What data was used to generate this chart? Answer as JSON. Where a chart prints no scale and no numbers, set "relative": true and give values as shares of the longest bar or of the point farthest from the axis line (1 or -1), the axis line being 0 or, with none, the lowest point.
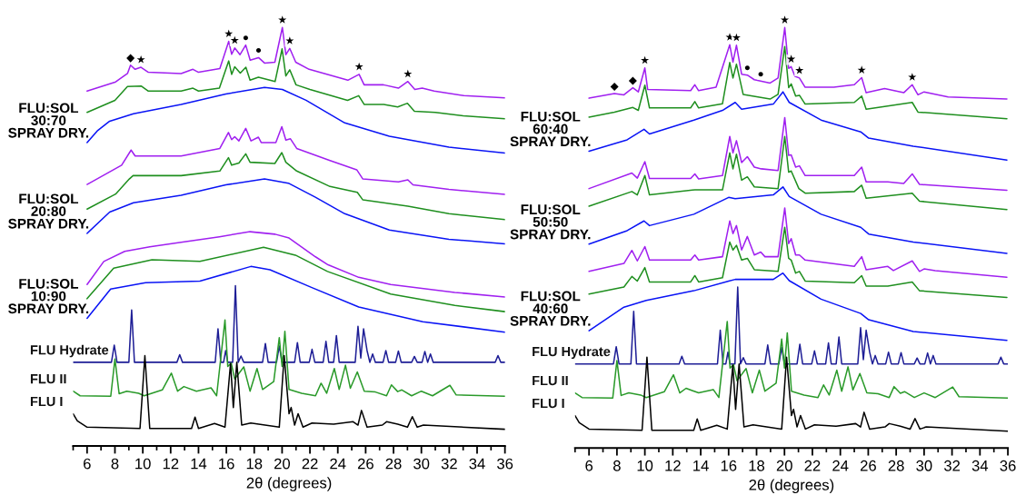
{
  "chart_data": [
    {
      "type": "line",
      "relative": true,
      "xlabel": "2θ (degrees)",
      "xlim": [
        5,
        36
      ],
      "tick_labels": "x",
      "xticks": [
        {
          "value": 5,
          "label": null
        },
        6,
        {
          "value": 7,
          "label": null
        },
        8,
        {
          "value": 9,
          "label": null
        },
        10,
        {
          "value": 11,
          "label": null
        },
        12,
        {
          "value": 13,
          "label": null
        },
        14,
        {
          "value": 15,
          "label": null
        },
        16,
        {
          "value": 17,
          "label": null
        },
        18,
        {
          "value": 19,
          "label": null
        },
        20,
        {
          "value": 21,
          "label": null
        },
        22,
        {
          "value": 23,
          "label": null
        },
        24,
        {
          "value": 25,
          "label": null
        },
        26,
        {
          "value": 27,
          "label": null
        },
        28,
        {
          "value": 29,
          "label": null
        },
        30,
        {
          "value": 31,
          "label": null
        },
        32,
        {
          "value": 33,
          "label": null
        },
        34,
        {
          "value": 35,
          "label": null
        },
        36
      ],
      "series": [
        {
          "color": "#a020f0",
          "x": [
            6.0,
            8.05,
            8.9,
            9.12,
            9.45,
            9.87,
            10.4,
            12.75,
            13.6,
            14.0,
            15.53,
            16.17,
            16.38,
            16.6,
            16.98,
            17.39,
            17.71,
            18.31,
            18.74,
            19.48,
            20.02,
            20.27,
            20.55,
            20.98,
            21.94,
            24.72,
            25.53,
            25.89,
            27.28,
            28.35,
            29.03,
            29.53,
            30.06,
            30.92,
            33.05,
            36.0
          ],
          "values": [
            0.848,
            0.87,
            0.89,
            0.91,
            0.9,
            0.905,
            0.893,
            0.89,
            0.9,
            0.893,
            0.902,
            0.967,
            0.936,
            0.951,
            0.935,
            0.958,
            0.922,
            0.928,
            0.915,
            0.917,
            1.0,
            0.935,
            0.95,
            0.917,
            0.9,
            0.874,
            0.888,
            0.863,
            0.863,
            0.855,
            0.871,
            0.852,
            0.855,
            0.848,
            0.837,
            0.832
          ]
        },
        {
          "color": "#1f8f1f",
          "x": [
            6.0,
            8.0,
            8.9,
            9.9,
            10.4,
            12.75,
            13.6,
            14.0,
            15.5,
            16.17,
            16.38,
            16.6,
            17.0,
            17.4,
            17.7,
            18.3,
            19.5,
            20.0,
            20.27,
            20.55,
            21.0,
            22.0,
            24.7,
            25.5,
            25.9,
            27.3,
            28.3,
            29.0,
            29.5,
            31.0,
            33.0,
            36.0
          ],
          "values": [
            0.797,
            0.826,
            0.859,
            0.86,
            0.848,
            0.848,
            0.855,
            0.848,
            0.855,
            0.92,
            0.888,
            0.906,
            0.891,
            0.905,
            0.874,
            0.881,
            0.871,
            0.949,
            0.884,
            0.899,
            0.863,
            0.852,
            0.826,
            0.837,
            0.816,
            0.816,
            0.81,
            0.819,
            0.8,
            0.797,
            0.789,
            0.782
          ]
        },
        {
          "color": "#0a14f5",
          "x": [
            6.0,
            6.77,
            7.62,
            9.33,
            12.75,
            15.96,
            18.74,
            20.02,
            21.72,
            24.5,
            27.7,
            31.98,
            36.0
          ],
          "values": [
            0.725,
            0.754,
            0.776,
            0.794,
            0.816,
            0.841,
            0.857,
            0.852,
            0.826,
            0.772,
            0.74,
            0.714,
            0.7
          ]
        },
        {
          "color": "#a020f0",
          "x": [
            6.0,
            8.48,
            9.16,
            9.45,
            12.75,
            15.53,
            16.15,
            16.38,
            16.6,
            16.9,
            17.39,
            17.77,
            18.3,
            18.5,
            19.55,
            19.98,
            20.27,
            20.6,
            21.05,
            23.44,
            25.36,
            25.8,
            28.35,
            29.03,
            29.4,
            31.98,
            36.0
          ],
          "values": [
            0.625,
            0.671,
            0.707,
            0.693,
            0.693,
            0.711,
            0.749,
            0.732,
            0.739,
            0.729,
            0.759,
            0.729,
            0.738,
            0.725,
            0.725,
            0.763,
            0.731,
            0.734,
            0.711,
            0.682,
            0.66,
            0.638,
            0.631,
            0.636,
            0.624,
            0.613,
            0.601
          ]
        },
        {
          "color": "#1f8f1f",
          "x": [
            6.0,
            8.05,
            9.03,
            9.3,
            12.75,
            15.53,
            16.15,
            16.38,
            16.9,
            17.39,
            17.7,
            19.48,
            19.98,
            20.27,
            21.05,
            23.44,
            25.4,
            25.8,
            29.03,
            31.98,
            36.0
          ],
          "values": [
            0.566,
            0.602,
            0.638,
            0.646,
            0.646,
            0.657,
            0.689,
            0.671,
            0.676,
            0.698,
            0.678,
            0.675,
            0.701,
            0.678,
            0.657,
            0.62,
            0.606,
            0.588,
            0.573,
            0.555,
            0.541
          ]
        },
        {
          "color": "#0a14f5",
          "x": [
            6.0,
            7.62,
            9.33,
            12.75,
            15.96,
            18.74,
            20.45,
            22.36,
            24.5,
            27.7,
            31.98,
            36.0
          ],
          "values": [
            0.508,
            0.559,
            0.581,
            0.599,
            0.624,
            0.638,
            0.628,
            0.595,
            0.555,
            0.516,
            0.494,
            0.483
          ]
        },
        {
          "color": "#a020f0",
          "x": [
            6.0,
            7.2,
            8.7,
            10.5,
            12.75,
            15.5,
            17.7,
            19.5,
            20.5,
            22.4,
            23.3,
            25.5,
            27.8,
            32.4,
            36.0
          ],
          "values": [
            0.386,
            0.441,
            0.465,
            0.476,
            0.487,
            0.5,
            0.512,
            0.506,
            0.497,
            0.452,
            0.433,
            0.403,
            0.386,
            0.367,
            0.356
          ]
        },
        {
          "color": "#1f8f1f",
          "x": [
            6.0,
            7.91,
            10.66,
            14.1,
            18.67,
            20.96,
            23.26,
            27.8,
            32.4,
            36.0
          ],
          "values": [
            0.352,
            0.425,
            0.445,
            0.441,
            0.475,
            0.456,
            0.417,
            0.363,
            0.336,
            0.321
          ]
        },
        {
          "color": "#0a14f5",
          "x": [
            6.0,
            7.69,
            10.2,
            14.1,
            17.76,
            19.13,
            22.1,
            25.5,
            30.1,
            36.0
          ],
          "values": [
            0.305,
            0.375,
            0.39,
            0.394,
            0.429,
            0.421,
            0.379,
            0.332,
            0.297,
            0.272
          ]
        },
        {
          "name": "FLU Hydrate",
          "color": "#1e1e96",
          "x": [
            5.0,
            7.75,
            7.95,
            8.15,
            9.0,
            9.2,
            9.4,
            12.45,
            12.65,
            12.85,
            15.2,
            15.4,
            15.6,
            15.8,
            15.95,
            16.1,
            16.45,
            16.65,
            16.85,
            17.05,
            17.25,
            18.6,
            18.8,
            19.0,
            19.6,
            19.8,
            20.0,
            20.9,
            21.1,
            21.3,
            21.95,
            22.15,
            22.35,
            22.95,
            23.15,
            23.35,
            23.7,
            23.9,
            24.1,
            25.25,
            25.45,
            25.65,
            25.85,
            26.1,
            26.3,
            26.5,
            26.7,
            27.25,
            27.45,
            27.65,
            28.15,
            28.35,
            28.55,
            29.3,
            29.5,
            29.7,
            30.05,
            30.25,
            30.45,
            30.65,
            30.85,
            35.3,
            35.5,
            35.7,
            36.0
          ],
          "values": [
            0.2,
            0.2,
            0.241,
            0.2,
            0.2,
            0.325,
            0.2,
            0.2,
            0.218,
            0.2,
            0.2,
            0.28,
            0.2,
            0.2,
            0.228,
            0.2,
            0.2,
            0.383,
            0.2,
            0.215,
            0.2,
            0.2,
            0.245,
            0.2,
            0.2,
            0.239,
            0.2,
            0.2,
            0.247,
            0.2,
            0.2,
            0.231,
            0.2,
            0.2,
            0.25,
            0.2,
            0.2,
            0.264,
            0.2,
            0.2,
            0.286,
            0.21,
            0.28,
            0.228,
            0.2,
            0.22,
            0.2,
            0.2,
            0.228,
            0.2,
            0.2,
            0.227,
            0.2,
            0.2,
            0.214,
            0.2,
            0.2,
            0.226,
            0.2,
            0.22,
            0.2,
            0.2,
            0.216,
            0.2,
            0.2
          ]
        },
        {
          "name": "FLU II",
          "color": "#2a9a2a",
          "x": [
            5.0,
            5.5,
            7.7,
            8.0,
            8.3,
            8.85,
            9.7,
            10.1,
            11.4,
            12.05,
            12.5,
            12.95,
            13.85,
            14.9,
            15.3,
            15.9,
            16.1,
            16.35,
            16.6,
            17.25,
            17.7,
            18.2,
            18.6,
            19.4,
            19.8,
            20.0,
            20.2,
            20.5,
            21.4,
            22.4,
            22.8,
            23.2,
            23.75,
            24.1,
            24.55,
            24.9,
            25.4,
            25.9,
            26.7,
            27.5,
            27.85,
            28.3,
            28.6,
            29.3,
            30.0,
            30.8,
            32.05,
            32.5,
            36.0
          ],
          "values": [
            0.131,
            0.12,
            0.119,
            0.208,
            0.125,
            0.131,
            0.126,
            0.12,
            0.134,
            0.174,
            0.131,
            0.142,
            0.131,
            0.139,
            0.12,
            0.301,
            0.19,
            0.198,
            0.16,
            0.189,
            0.131,
            0.185,
            0.135,
            0.154,
            0.259,
            0.19,
            0.274,
            0.135,
            0.126,
            0.12,
            0.15,
            0.126,
            0.185,
            0.135,
            0.193,
            0.138,
            0.177,
            0.131,
            0.129,
            0.12,
            0.146,
            0.13,
            0.134,
            0.12,
            0.131,
            0.12,
            0.145,
            0.122,
            0.119
          ]
        },
        {
          "name": "FLU I",
          "color": "#000000",
          "x": [
            5.0,
            5.3,
            6.0,
            9.8,
            10.15,
            10.5,
            13.5,
            13.75,
            14.0,
            15.15,
            15.9,
            16.3,
            16.5,
            16.75,
            17.1,
            17.75,
            19.8,
            20.15,
            20.5,
            20.65,
            20.9,
            21.15,
            21.5,
            22.15,
            23.7,
            25.1,
            25.45,
            25.7,
            26.1,
            27.2,
            27.5,
            28.3,
            29.0,
            29.35,
            29.7,
            30.15,
            36.0
          ],
          "values": [
            0.077,
            0.06,
            0.045,
            0.042,
            0.216,
            0.042,
            0.042,
            0.069,
            0.042,
            0.054,
            0.045,
            0.197,
            0.092,
            0.2,
            0.05,
            0.055,
            0.045,
            0.216,
            0.077,
            0.092,
            0.05,
            0.077,
            0.045,
            0.055,
            0.052,
            0.058,
            0.05,
            0.085,
            0.045,
            0.05,
            0.058,
            0.052,
            0.045,
            0.07,
            0.045,
            0.05,
            0.04
          ]
        }
      ],
      "annotations": [
        "FLU:SOL\n30:70\nSPRAY DRY.",
        "FLU:SOL\n20:80\nSPRAY DRY.",
        "FLU:SOL\n10:90\nSPRAY DRY.",
        {
          "text": "◆",
          "x": 9.12,
          "y": 0.91
        },
        {
          "text": "★",
          "x": 9.87,
          "y": 0.905
        },
        {
          "text": "★",
          "x": 16.17,
          "y": 0.967
        },
        {
          "text": "★",
          "x": 16.6,
          "y": 0.951
        },
        {
          "text": "●",
          "x": 17.39,
          "y": 0.958
        },
        {
          "text": "●",
          "x": 18.31,
          "y": 0.928
        },
        {
          "text": "★",
          "x": 20.02,
          "y": 1.0
        },
        {
          "text": "★",
          "x": 20.55,
          "y": 0.95
        },
        {
          "text": "★",
          "x": 25.53,
          "y": 0.888
        },
        {
          "text": "★",
          "x": 29.03,
          "y": 0.871
        }
      ]
    },
    {
      "type": "line",
      "relative": true,
      "xlabel": "2θ (degrees)",
      "xlim": [
        5,
        36
      ],
      "tick_labels": "x",
      "xticks": [
        {
          "value": 5,
          "label": null
        },
        6,
        {
          "value": 7,
          "label": null
        },
        8,
        {
          "value": 9,
          "label": null
        },
        10,
        {
          "value": 11,
          "label": null
        },
        12,
        {
          "value": 13,
          "label": null
        },
        14,
        {
          "value": 15,
          "label": null
        },
        16,
        {
          "value": 17,
          "label": null
        },
        18,
        {
          "value": 19,
          "label": null
        },
        20,
        {
          "value": 21,
          "label": null
        },
        22,
        {
          "value": 23,
          "label": null
        },
        24,
        {
          "value": 25,
          "label": null
        },
        26,
        {
          "value": 27,
          "label": null
        },
        28,
        {
          "value": 29,
          "label": null
        },
        30,
        {
          "value": 31,
          "label": null
        },
        32,
        {
          "value": 33,
          "label": null
        },
        34,
        {
          "value": 35,
          "label": null
        },
        36
      ],
      "series": [
        {
          "color": "#a020f0",
          "x": [
            6.0,
            7.82,
            8.5,
            9.14,
            9.53,
            10.0,
            10.2,
            13.28,
            13.58,
            13.85,
            15.1,
            16.08,
            16.31,
            16.56,
            16.93,
            17.34,
            17.84,
            18.97,
            19.54,
            20.02,
            20.3,
            20.48,
            20.75,
            21.07,
            21.48,
            23.53,
            25.0,
            25.53,
            25.85,
            27.17,
            28.54,
            29.15,
            29.56,
            30.0,
            31.72,
            35.93
          ],
          "values": [
            0.832,
            0.843,
            0.84,
            0.857,
            0.847,
            0.904,
            0.853,
            0.85,
            0.864,
            0.85,
            0.858,
            0.959,
            0.918,
            0.958,
            0.889,
            0.887,
            0.876,
            0.868,
            0.88,
            1.0,
            0.903,
            0.907,
            0.884,
            0.88,
            0.858,
            0.858,
            0.864,
            0.881,
            0.845,
            0.855,
            0.845,
            0.864,
            0.84,
            0.847,
            0.835,
            0.83
          ]
        },
        {
          "color": "#1f8f1f",
          "x": [
            6.0,
            7.82,
            9.14,
            9.53,
            10.0,
            10.33,
            13.28,
            13.58,
            13.85,
            15.56,
            16.08,
            16.31,
            16.56,
            17.04,
            18.97,
            19.54,
            20.02,
            20.3,
            20.48,
            20.8,
            21.07,
            21.48,
            25.0,
            25.53,
            25.85,
            29.15,
            29.56,
            35.93
          ],
          "values": [
            0.787,
            0.799,
            0.81,
            0.803,
            0.863,
            0.809,
            0.809,
            0.824,
            0.809,
            0.819,
            0.917,
            0.88,
            0.913,
            0.841,
            0.83,
            0.841,
            0.955,
            0.857,
            0.866,
            0.837,
            0.839,
            0.818,
            0.822,
            0.837,
            0.806,
            0.822,
            0.799,
            0.783
          ]
        },
        {
          "color": "#0a14f5",
          "x": [
            6.0,
            8.73,
            9.94,
            10.33,
            13.51,
            15.56,
            16.47,
            16.93,
            19.2,
            19.89,
            20.34,
            22.62,
            25.46,
            26.03,
            29.22,
            35.93
          ],
          "values": [
            0.706,
            0.733,
            0.758,
            0.747,
            0.78,
            0.803,
            0.822,
            0.806,
            0.818,
            0.847,
            0.822,
            0.78,
            0.752,
            0.737,
            0.718,
            0.685
          ]
        },
        {
          "color": "#a020f0",
          "x": [
            6.0,
            9.07,
            9.46,
            10.0,
            10.33,
            13.28,
            13.58,
            13.85,
            15.56,
            16.08,
            16.31,
            16.56,
            16.93,
            17.34,
            17.84,
            18.34,
            19.54,
            20.02,
            20.3,
            20.48,
            20.8,
            21.07,
            21.48,
            25.0,
            25.53,
            25.85,
            27.4,
            28.54,
            29.15,
            29.67,
            35.93
          ],
          "values": [
            0.617,
            0.654,
            0.642,
            0.681,
            0.641,
            0.641,
            0.652,
            0.64,
            0.648,
            0.741,
            0.702,
            0.731,
            0.679,
            0.693,
            0.668,
            0.664,
            0.66,
            0.786,
            0.696,
            0.697,
            0.668,
            0.671,
            0.648,
            0.648,
            0.668,
            0.633,
            0.633,
            0.629,
            0.652,
            0.627,
            0.613
          ]
        },
        {
          "color": "#1f8f1f",
          "x": [
            6.0,
            9.07,
            9.46,
            10.0,
            10.33,
            13.58,
            15.56,
            16.08,
            16.31,
            16.56,
            16.93,
            17.34,
            17.84,
            19.54,
            20.02,
            20.3,
            20.48,
            21.03,
            21.48,
            25.0,
            25.53,
            25.85,
            29.15,
            29.67,
            35.93
          ],
          "values": [
            0.575,
            0.61,
            0.602,
            0.648,
            0.602,
            0.614,
            0.614,
            0.702,
            0.664,
            0.699,
            0.637,
            0.645,
            0.621,
            0.617,
            0.741,
            0.656,
            0.659,
            0.617,
            0.606,
            0.61,
            0.625,
            0.594,
            0.606,
            0.587,
            0.567
          ]
        },
        {
          "color": "#0a14f5",
          "x": [
            6.0,
            8.73,
            9.94,
            10.33,
            13.51,
            16.0,
            16.47,
            19.2,
            19.89,
            20.34,
            22.62,
            25.46,
            26.03,
            29.22,
            35.93
          ],
          "values": [
            0.485,
            0.517,
            0.54,
            0.529,
            0.556,
            0.596,
            0.593,
            0.602,
            0.621,
            0.598,
            0.556,
            0.525,
            0.509,
            0.49,
            0.463
          ]
        },
        {
          "color": "#a020f0",
          "x": [
            6.0,
            8.5,
            9.07,
            9.46,
            10.0,
            10.33,
            13.28,
            13.58,
            13.85,
            15.56,
            16.08,
            16.31,
            16.56,
            16.93,
            17.34,
            17.84,
            18.3,
            18.6,
            19.54,
            20.02,
            20.3,
            20.48,
            20.8,
            21.07,
            21.48,
            25.0,
            25.53,
            25.85,
            27.4,
            27.8,
            29.15,
            29.67,
            30.0,
            30.8,
            35.93
          ],
          "values": [
            0.42,
            0.439,
            0.47,
            0.445,
            0.479,
            0.447,
            0.447,
            0.459,
            0.447,
            0.455,
            0.54,
            0.51,
            0.529,
            0.471,
            0.503,
            0.459,
            0.466,
            0.455,
            0.455,
            0.571,
            0.486,
            0.498,
            0.459,
            0.459,
            0.447,
            0.432,
            0.455,
            0.424,
            0.432,
            0.422,
            0.445,
            0.42,
            0.426,
            0.422,
            0.406
          ]
        },
        {
          "color": "#1f8f1f",
          "x": [
            6.0,
            8.5,
            9.07,
            9.46,
            10.0,
            10.33,
            13.28,
            13.58,
            13.85,
            15.56,
            16.08,
            16.31,
            16.56,
            16.93,
            17.34,
            17.84,
            19.54,
            20.02,
            20.3,
            20.48,
            20.8,
            21.07,
            21.48,
            25.0,
            25.53,
            25.85,
            27.4,
            29.15,
            29.67,
            35.93
          ],
          "values": [
            0.366,
            0.383,
            0.408,
            0.397,
            0.429,
            0.395,
            0.395,
            0.41,
            0.395,
            0.405,
            0.49,
            0.471,
            0.482,
            0.447,
            0.451,
            0.424,
            0.42,
            0.525,
            0.451,
            0.447,
            0.416,
            0.42,
            0.397,
            0.393,
            0.41,
            0.385,
            0.385,
            0.395,
            0.374,
            0.358
          ]
        },
        {
          "color": "#0a14f5",
          "x": [
            6.0,
            8.5,
            10.1,
            13.51,
            16.0,
            16.47,
            19.2,
            19.89,
            20.34,
            22.62,
            25.46,
            26.03,
            29.22,
            35.93
          ],
          "values": [
            0.279,
            0.335,
            0.351,
            0.374,
            0.397,
            0.401,
            0.401,
            0.416,
            0.398,
            0.354,
            0.32,
            0.305,
            0.277,
            0.256
          ]
        },
        {
          "name": "FLU Hydrate",
          "color": "#1e1e96",
          "x": [
            5.0,
            7.75,
            7.95,
            8.15,
            9.0,
            9.2,
            9.4,
            12.45,
            12.65,
            12.85,
            15.2,
            15.4,
            15.6,
            15.8,
            15.95,
            16.1,
            16.45,
            16.65,
            16.85,
            17.05,
            17.25,
            18.6,
            18.8,
            19.0,
            19.6,
            19.8,
            20.0,
            20.9,
            21.1,
            21.3,
            21.95,
            22.15,
            22.35,
            22.95,
            23.15,
            23.35,
            23.7,
            23.9,
            24.1,
            25.25,
            25.45,
            25.65,
            25.85,
            26.1,
            26.3,
            26.5,
            26.7,
            27.25,
            27.45,
            27.65,
            28.15,
            28.35,
            28.55,
            29.3,
            29.5,
            29.7,
            30.05,
            30.25,
            30.45,
            30.65,
            30.85,
            35.3,
            35.5,
            35.7,
            36.0
          ],
          "values": [
            0.2,
            0.2,
            0.241,
            0.2,
            0.2,
            0.325,
            0.2,
            0.2,
            0.218,
            0.2,
            0.2,
            0.28,
            0.2,
            0.2,
            0.228,
            0.2,
            0.2,
            0.383,
            0.2,
            0.215,
            0.2,
            0.2,
            0.245,
            0.2,
            0.2,
            0.239,
            0.2,
            0.2,
            0.247,
            0.2,
            0.2,
            0.231,
            0.2,
            0.2,
            0.25,
            0.2,
            0.2,
            0.264,
            0.2,
            0.2,
            0.286,
            0.21,
            0.28,
            0.228,
            0.2,
            0.22,
            0.2,
            0.2,
            0.228,
            0.2,
            0.2,
            0.227,
            0.2,
            0.2,
            0.214,
            0.2,
            0.2,
            0.226,
            0.2,
            0.22,
            0.2,
            0.2,
            0.216,
            0.2,
            0.2
          ]
        },
        {
          "name": "FLU II",
          "color": "#2a9a2a",
          "x": [
            5.0,
            5.5,
            7.7,
            8.0,
            8.3,
            8.85,
            9.7,
            10.1,
            11.4,
            12.05,
            12.5,
            12.95,
            13.85,
            14.9,
            15.3,
            15.9,
            16.1,
            16.35,
            16.6,
            17.25,
            17.7,
            18.2,
            18.6,
            19.4,
            19.8,
            20.0,
            20.2,
            20.5,
            21.4,
            22.4,
            22.8,
            23.2,
            23.75,
            24.1,
            24.55,
            24.9,
            25.4,
            25.9,
            26.7,
            27.5,
            27.85,
            28.3,
            28.6,
            29.3,
            30.0,
            30.8,
            32.05,
            32.5,
            36.0
          ],
          "values": [
            0.131,
            0.12,
            0.119,
            0.208,
            0.125,
            0.131,
            0.126,
            0.12,
            0.134,
            0.174,
            0.131,
            0.142,
            0.131,
            0.139,
            0.12,
            0.301,
            0.19,
            0.198,
            0.16,
            0.189,
            0.131,
            0.185,
            0.135,
            0.154,
            0.259,
            0.19,
            0.274,
            0.135,
            0.126,
            0.12,
            0.15,
            0.126,
            0.185,
            0.135,
            0.193,
            0.138,
            0.177,
            0.131,
            0.129,
            0.12,
            0.146,
            0.13,
            0.134,
            0.12,
            0.131,
            0.12,
            0.145,
            0.122,
            0.119
          ]
        },
        {
          "name": "FLU I",
          "color": "#000000",
          "x": [
            5.0,
            5.3,
            6.0,
            9.8,
            10.15,
            10.5,
            13.5,
            13.75,
            14.0,
            15.15,
            15.9,
            16.3,
            16.5,
            16.75,
            17.1,
            17.75,
            19.8,
            20.15,
            20.5,
            20.65,
            20.9,
            21.15,
            21.5,
            22.15,
            23.7,
            25.1,
            25.45,
            25.7,
            26.1,
            27.2,
            27.5,
            28.3,
            29.0,
            29.35,
            29.7,
            30.15,
            36.0
          ],
          "values": [
            0.077,
            0.06,
            0.045,
            0.042,
            0.216,
            0.042,
            0.042,
            0.069,
            0.042,
            0.054,
            0.045,
            0.197,
            0.092,
            0.2,
            0.05,
            0.055,
            0.045,
            0.216,
            0.077,
            0.092,
            0.05,
            0.077,
            0.045,
            0.055,
            0.052,
            0.058,
            0.05,
            0.085,
            0.045,
            0.05,
            0.058,
            0.052,
            0.045,
            0.07,
            0.045,
            0.05,
            0.04
          ]
        }
      ],
      "annotations": [
        "FLU:SOL\n60:40\nSPRAY DRY.",
        "FLU:SOL\n50:50\nSPRAY DRY.",
        "FLU:SOL\n40:60\nSPRAY DRY.",
        {
          "text": "◆",
          "x": 7.82,
          "y": 0.843
        },
        {
          "text": "◆",
          "x": 9.14,
          "y": 0.857
        },
        {
          "text": "★",
          "x": 10.0,
          "y": 0.904
        },
        {
          "text": "★",
          "x": 16.08,
          "y": 0.959
        },
        {
          "text": "★",
          "x": 16.56,
          "y": 0.958
        },
        {
          "text": "●",
          "x": 17.34,
          "y": 0.887
        },
        {
          "text": "●",
          "x": 18.3,
          "y": 0.872
        },
        {
          "text": "★",
          "x": 20.02,
          "y": 1.0
        },
        {
          "text": "★",
          "x": 20.48,
          "y": 0.907
        },
        {
          "text": "★",
          "x": 21.07,
          "y": 0.88
        },
        {
          "text": "★",
          "x": 25.53,
          "y": 0.881
        },
        {
          "text": "★",
          "x": 29.15,
          "y": 0.864
        }
      ]
    }
  ]
}
